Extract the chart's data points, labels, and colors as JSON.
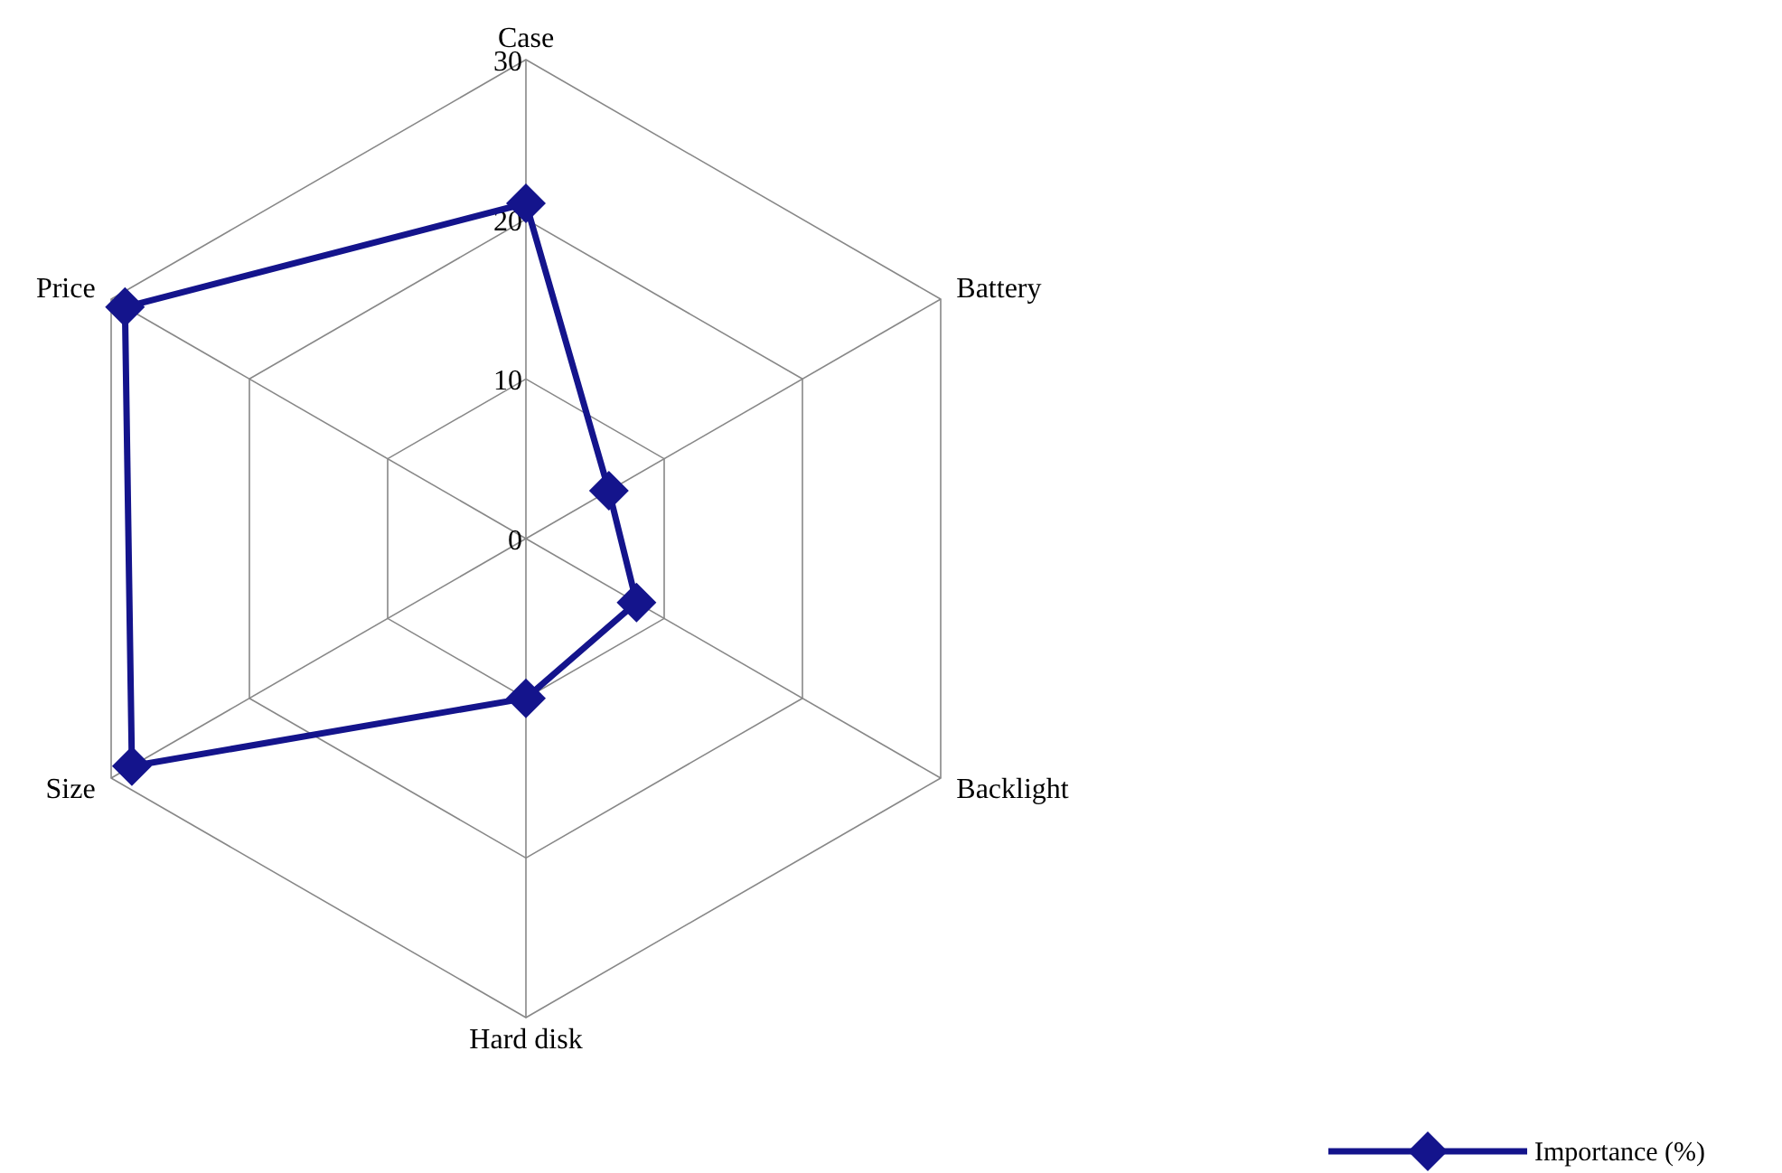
{
  "chart_data": {
    "type": "radar",
    "categories": [
      "Case",
      "Battery",
      "Backlight",
      "Hard disk",
      "Size",
      "Price"
    ],
    "series": [
      {
        "name": "Importance (%)",
        "color": "#14148c",
        "values": [
          21,
          6,
          8,
          10,
          28.5,
          29
        ]
      }
    ],
    "ylim": [
      0,
      30
    ],
    "yticks": [
      0,
      10,
      20,
      30
    ],
    "grid": true,
    "legend": "bottom right",
    "marker": "diamond",
    "line_style": "solid"
  }
}
